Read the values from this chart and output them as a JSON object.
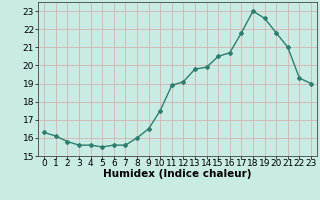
{
  "x": [
    0,
    1,
    2,
    3,
    4,
    5,
    6,
    7,
    8,
    9,
    10,
    11,
    12,
    13,
    14,
    15,
    16,
    17,
    18,
    19,
    20,
    21,
    22,
    23
  ],
  "y": [
    16.3,
    16.1,
    15.8,
    15.6,
    15.6,
    15.5,
    15.6,
    15.6,
    16.0,
    16.5,
    17.5,
    18.9,
    19.1,
    19.8,
    19.9,
    20.5,
    20.7,
    21.8,
    23.0,
    22.6,
    21.8,
    21.0,
    19.3,
    19.0
  ],
  "line_color": "#2e7d6e",
  "marker": "D",
  "marker_size": 2.0,
  "line_width": 1.0,
  "bg_color": "#c8ece4",
  "grid_color": "#d8a8a8",
  "xlabel": "Humidex (Indice chaleur)",
  "ylabel": "",
  "xlim": [
    -0.5,
    23.5
  ],
  "ylim": [
    15,
    23.5
  ],
  "yticks": [
    15,
    16,
    17,
    18,
    19,
    20,
    21,
    22,
    23
  ],
  "xticks": [
    0,
    1,
    2,
    3,
    4,
    5,
    6,
    7,
    8,
    9,
    10,
    11,
    12,
    13,
    14,
    15,
    16,
    17,
    18,
    19,
    20,
    21,
    22,
    23
  ],
  "tick_label_fontsize": 6.5,
  "xlabel_fontsize": 7.5
}
